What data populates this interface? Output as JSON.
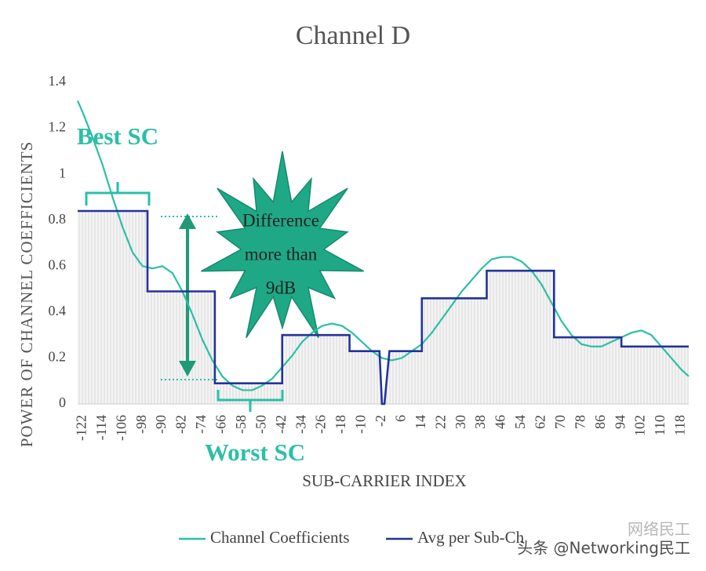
{
  "chart_data": {
    "type": "line",
    "title": "Channel D",
    "y_label": "POWER OF CHANNEL COEFFICIENTS",
    "x_label": "SUB-CARRIER INDEX",
    "xlim": [
      -124,
      121
    ],
    "ylim": [
      0,
      1.4
    ],
    "xticks": [
      -122,
      -114,
      -106,
      -98,
      -90,
      -82,
      -74,
      -66,
      -58,
      -50,
      -42,
      -34,
      -26,
      -18,
      -10,
      -2,
      6,
      14,
      22,
      30,
      38,
      46,
      54,
      62,
      70,
      78,
      86,
      94,
      102,
      110,
      118
    ],
    "yticks": [
      0,
      0.2,
      0.4,
      0.6,
      0.8,
      1,
      1.2,
      1.4
    ],
    "grid": false,
    "series": [
      {
        "name": "Channel Coefficients",
        "color": "#2bbfa6",
        "style": "line",
        "x": [
          -124,
          -122,
          -118,
          -114,
          -110,
          -106,
          -102,
          -98,
          -94,
          -90,
          -86,
          -82,
          -78,
          -74,
          -70,
          -66,
          -62,
          -58,
          -54,
          -50,
          -46,
          -42,
          -38,
          -34,
          -30,
          -26,
          -22,
          -18,
          -14,
          -10,
          -6,
          -2,
          2,
          6,
          10,
          14,
          18,
          22,
          26,
          30,
          34,
          38,
          42,
          46,
          50,
          54,
          58,
          62,
          66,
          70,
          74,
          78,
          82,
          86,
          90,
          94,
          98,
          102,
          106,
          110,
          114,
          118,
          121
        ],
        "values": [
          1.32,
          1.27,
          1.16,
          1.04,
          0.9,
          0.77,
          0.66,
          0.6,
          0.59,
          0.6,
          0.57,
          0.49,
          0.39,
          0.28,
          0.19,
          0.12,
          0.08,
          0.06,
          0.06,
          0.08,
          0.11,
          0.16,
          0.21,
          0.27,
          0.31,
          0.34,
          0.35,
          0.34,
          0.31,
          0.27,
          0.23,
          0.2,
          0.19,
          0.2,
          0.23,
          0.26,
          0.31,
          0.37,
          0.43,
          0.49,
          0.54,
          0.59,
          0.63,
          0.64,
          0.64,
          0.62,
          0.58,
          0.52,
          0.44,
          0.36,
          0.3,
          0.26,
          0.25,
          0.25,
          0.27,
          0.29,
          0.31,
          0.32,
          0.3,
          0.25,
          0.2,
          0.15,
          0.12
        ]
      },
      {
        "name": "Avg per Sub-Ch",
        "color": "#23339c",
        "style": "step",
        "x": [
          -124,
          -96,
          -96,
          -69,
          -69,
          -42,
          -42,
          -15,
          -15,
          -3,
          -2,
          -1,
          1,
          14,
          14,
          40,
          40,
          67,
          67,
          94,
          94,
          121
        ],
        "values": [
          0.84,
          0.84,
          0.49,
          0.49,
          0.09,
          0.09,
          0.3,
          0.3,
          0.23,
          0.23,
          0,
          0,
          0.23,
          0.23,
          0.46,
          0.46,
          0.58,
          0.58,
          0.29,
          0.29,
          0.25,
          0.25
        ]
      }
    ],
    "annotations": [
      {
        "text": "Best SC",
        "color": "#2bbfa6"
      },
      {
        "text": "Worst SC",
        "color": "#2bbfa6"
      },
      {
        "lines": [
          "Difference",
          "more than",
          "9dB"
        ],
        "color": "#222222"
      }
    ],
    "watermark": [
      "头条 @Networking民工",
      "网络民工"
    ]
  }
}
